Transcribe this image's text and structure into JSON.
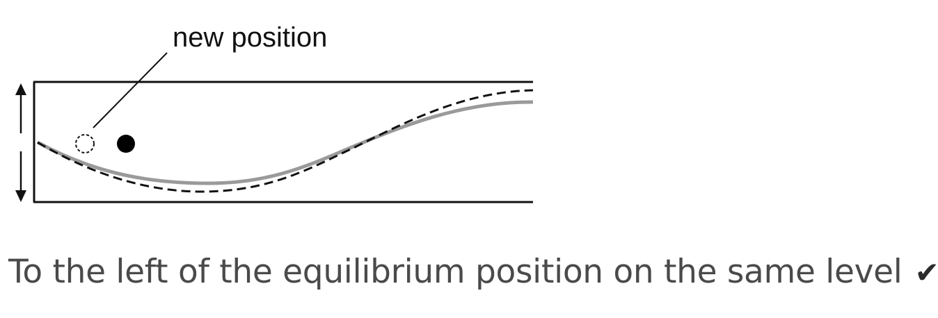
{
  "diagram": {
    "label": "new position"
  },
  "answer": {
    "text": "To the left of the equilibrium position on the same level",
    "mark": "✔"
  },
  "icons": {
    "mark": "check-mark-icon",
    "amplitude": "double-arrow-icon"
  }
}
